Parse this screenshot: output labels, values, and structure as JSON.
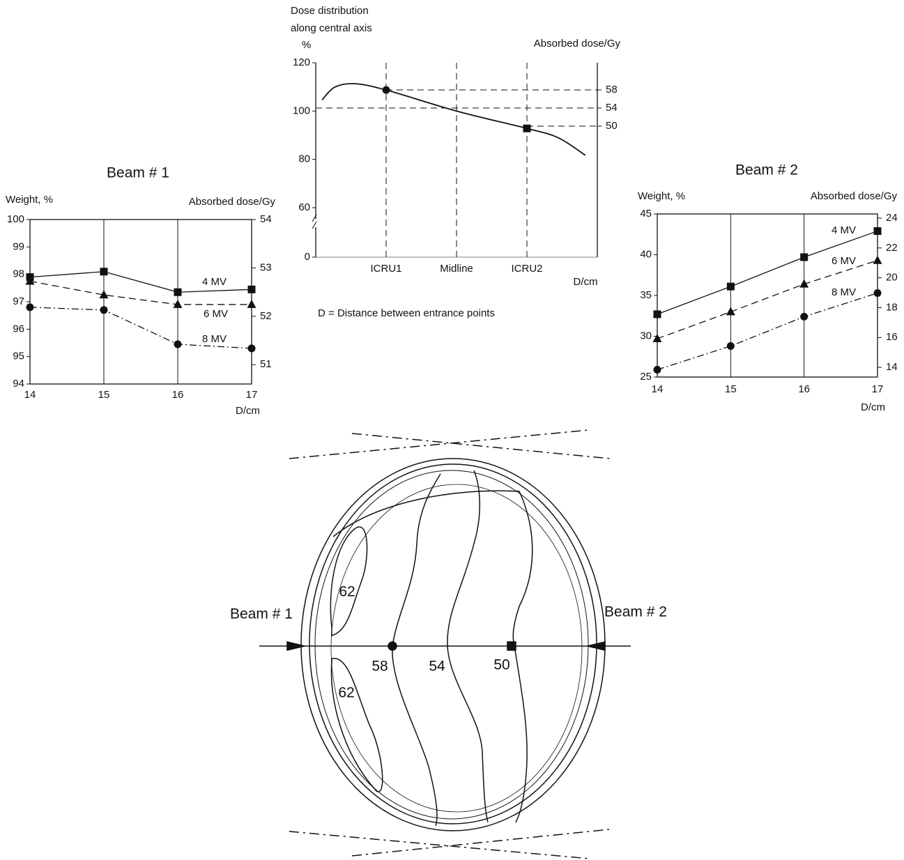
{
  "chart_data": [
    {
      "type": "line",
      "title": [
        "Dose distribution",
        "along central axis"
      ],
      "y_label": "%",
      "y2_label": "Absorbed dose/Gy",
      "x_label": "D/cm",
      "note": "D = Distance between entrance points",
      "x": [
        0.09,
        0.27,
        0.56,
        1,
        2,
        3,
        3.44,
        3.83
      ],
      "values": [
        104.6,
        109.9,
        111.3,
        108.7,
        100,
        92.8,
        89,
        81.7
      ],
      "color": "#111111",
      "markers": [
        {
          "index": 3,
          "shape": "circle"
        },
        {
          "index": 5,
          "shape": "square"
        }
      ],
      "xlim": [
        0,
        4
      ],
      "xticks": [
        {
          "value": 1,
          "label": "ICRU1"
        },
        {
          "value": 2,
          "label": "Midline"
        },
        {
          "value": 3,
          "label": "ICRU2"
        }
      ],
      "ylim": [
        0,
        120
      ],
      "y_break": 60,
      "yticks": [
        0,
        60,
        80,
        100,
        120
      ],
      "y2lim": [
        32,
        64
      ],
      "y2ticks": [
        50,
        54,
        58
      ],
      "grid": "dashed"
    },
    {
      "type": "line",
      "title": "Beam # 1",
      "y_label": "Weight, %",
      "y2_label": "Absorbed dose/Gy",
      "x_label": "D/cm",
      "x": [
        14,
        15,
        16,
        17
      ],
      "xlim": [
        14,
        17
      ],
      "xticks": [
        14,
        15,
        16,
        17
      ],
      "ylim": [
        94,
        100
      ],
      "yticks": [
        94,
        95,
        96,
        97,
        98,
        99,
        100
      ],
      "y2lim": [
        50.6,
        54
      ],
      "y2ticks": [
        51,
        52,
        53,
        54
      ],
      "grid": "solid",
      "series": [
        {
          "name": "4 MV",
          "color": "#111111",
          "marker": "square",
          "line_style": "solid",
          "values": [
            97.9,
            98.1,
            97.35,
            97.45
          ]
        },
        {
          "name": "6 MV",
          "color": "#111111",
          "marker": "triangle",
          "line_style": "dashed",
          "values": [
            97.75,
            97.25,
            96.9,
            96.9
          ]
        },
        {
          "name": "8 MV",
          "color": "#111111",
          "marker": "circle",
          "line_style": "dashdot",
          "values": [
            96.8,
            96.7,
            95.45,
            95.3
          ]
        }
      ]
    },
    {
      "type": "line",
      "title": "Beam # 2",
      "y_label": "Weight, %",
      "y2_label": "Absorbed dose/Gy",
      "x_label": "D/cm",
      "x": [
        14,
        15,
        16,
        17
      ],
      "xlim": [
        14,
        17
      ],
      "xticks": [
        14,
        15,
        16,
        17
      ],
      "ylim": [
        25,
        45
      ],
      "yticks": [
        25,
        30,
        35,
        40,
        45
      ],
      "y2lim": [
        13.35,
        24.28
      ],
      "y2ticks": [
        14,
        16,
        18,
        20,
        22,
        24
      ],
      "grid": "solid",
      "series": [
        {
          "name": "4 MV",
          "color": "#111111",
          "marker": "square",
          "line_style": "solid",
          "values": [
            32.7,
            36.1,
            39.7,
            42.9
          ]
        },
        {
          "name": "6 MV",
          "color": "#111111",
          "marker": "triangle",
          "line_style": "dashed",
          "values": [
            29.7,
            33.0,
            36.4,
            39.3
          ]
        },
        {
          "name": "8 MV",
          "color": "#111111",
          "marker": "circle",
          "line_style": "dashdot",
          "values": [
            25.9,
            28.8,
            32.4,
            35.3
          ]
        }
      ]
    }
  ],
  "diagram": {
    "beam_labels": [
      "Beam # 1",
      "Beam # 2"
    ],
    "isodose_labels": [
      "62",
      "62",
      "58",
      "54",
      "50"
    ]
  }
}
